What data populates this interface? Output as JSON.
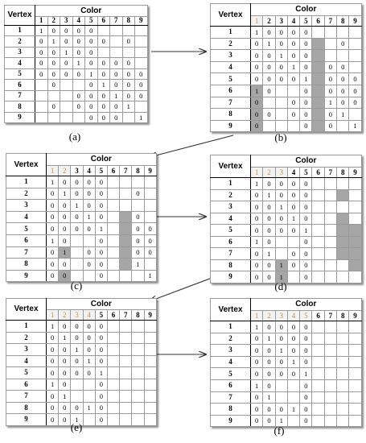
{
  "vertex_label": "Vertex",
  "color_label": "Color",
  "color_numbers": [
    "1",
    "2",
    "3",
    "4",
    "5",
    "6",
    "7",
    "8",
    "9"
  ],
  "vertex_numbers": [
    "1",
    "2",
    "3",
    "4",
    "5",
    "6",
    "7",
    "8",
    "9"
  ],
  "colors": {
    "used_header": "#c9913f",
    "shade": "#a6a6a6",
    "arrow": "#333333"
  },
  "panels": [
    {
      "id": "a",
      "caption": "(a)",
      "used": 0,
      "rows": [
        [
          "1",
          "0",
          "0",
          "0",
          "0",
          "",
          "",
          "",
          ""
        ],
        [
          "0",
          "1",
          "0",
          "0",
          "0",
          "0",
          "",
          "0",
          ""
        ],
        [
          "0",
          "0",
          "1",
          "0",
          "0",
          "",
          "",
          "",
          ""
        ],
        [
          "0",
          "0",
          "0",
          "1",
          "0",
          "0",
          "0",
          "0",
          ""
        ],
        [
          "0",
          "0",
          "0",
          "0",
          "1",
          "0",
          "0",
          "0",
          "0"
        ],
        [
          "",
          "0",
          "",
          "",
          "0",
          "1",
          "0",
          "0",
          "0"
        ],
        [
          "",
          "",
          "",
          "0",
          "0",
          "0",
          "1",
          "0",
          "0"
        ],
        [
          "",
          "0",
          "",
          "0",
          "0",
          "0",
          "0",
          "1",
          ""
        ],
        [
          "",
          "",
          "",
          "",
          "0",
          "0",
          "0",
          "",
          "1"
        ]
      ],
      "shaded": []
    },
    {
      "id": "b",
      "caption": "(b)",
      "used": 1,
      "rows": [
        [
          "1",
          "0",
          "0",
          "0",
          "0",
          "",
          "",
          "",
          ""
        ],
        [
          "0",
          "1",
          "0",
          "0",
          "0",
          "",
          "",
          "0",
          ""
        ],
        [
          "0",
          "0",
          "1",
          "0",
          "0",
          "",
          "",
          "",
          ""
        ],
        [
          "0",
          "0",
          "0",
          "1",
          "0",
          "",
          "0",
          "0",
          ""
        ],
        [
          "0",
          "0",
          "0",
          "0",
          "1",
          "",
          "0",
          "0",
          "0"
        ],
        [
          "1",
          "0",
          "",
          "",
          "0",
          "",
          "0",
          "0",
          "0"
        ],
        [
          "0",
          "",
          "",
          "0",
          "0",
          "",
          "1",
          "0",
          "0"
        ],
        [
          "0",
          "0",
          "",
          "0",
          "0",
          "",
          "0",
          "1",
          ""
        ],
        [
          "0",
          "",
          "",
          "",
          "0",
          "",
          "0",
          "",
          "1"
        ]
      ],
      "shaded": [
        [
          1,
          5
        ],
        [
          2,
          5
        ],
        [
          3,
          5
        ],
        [
          4,
          5
        ],
        [
          5,
          5
        ],
        [
          5,
          0
        ],
        [
          6,
          5
        ],
        [
          6,
          0
        ],
        [
          7,
          5
        ],
        [
          7,
          0
        ],
        [
          8,
          5
        ],
        [
          8,
          0
        ]
      ]
    },
    {
      "id": "c",
      "caption": "(c)",
      "used": 2,
      "rows": [
        [
          "1",
          "0",
          "0",
          "0",
          "0",
          "",
          "",
          "",
          ""
        ],
        [
          "0",
          "1",
          "0",
          "0",
          "0",
          "",
          "",
          "0",
          ""
        ],
        [
          "0",
          "0",
          "1",
          "0",
          "0",
          "",
          "",
          "",
          ""
        ],
        [
          "0",
          "0",
          "0",
          "1",
          "0",
          "",
          "",
          "0",
          ""
        ],
        [
          "0",
          "0",
          "0",
          "0",
          "1",
          "",
          "",
          "0",
          "0"
        ],
        [
          "1",
          "0",
          "",
          "",
          "0",
          "",
          "",
          "0",
          "0"
        ],
        [
          "0",
          "1",
          "",
          "0",
          "0",
          "",
          "",
          "0",
          "0"
        ],
        [
          "0",
          "0",
          "",
          "0",
          "0",
          "",
          "",
          "1",
          ""
        ],
        [
          "0",
          "0",
          "",
          "",
          "0",
          "",
          "",
          "",
          "1"
        ]
      ],
      "shaded": [
        [
          3,
          6
        ],
        [
          4,
          6
        ],
        [
          5,
          6
        ],
        [
          6,
          6
        ],
        [
          6,
          1
        ],
        [
          7,
          6
        ],
        [
          8,
          1
        ]
      ]
    },
    {
      "id": "d",
      "caption": "(d)",
      "used": 3,
      "rows": [
        [
          "1",
          "0",
          "0",
          "0",
          "0",
          "",
          "",
          "",
          ""
        ],
        [
          "0",
          "1",
          "0",
          "0",
          "0",
          "",
          "",
          "",
          ""
        ],
        [
          "0",
          "0",
          "1",
          "0",
          "0",
          "",
          "",
          "",
          ""
        ],
        [
          "0",
          "0",
          "0",
          "1",
          "0",
          "",
          "",
          "",
          ""
        ],
        [
          "0",
          "0",
          "0",
          "0",
          "1",
          "",
          "",
          "",
          ""
        ],
        [
          "1",
          "0",
          "",
          "",
          "0",
          "",
          "",
          "",
          ""
        ],
        [
          "0",
          "1",
          "",
          "0",
          "0",
          "",
          "",
          "",
          ""
        ],
        [
          "0",
          "0",
          "1",
          "0",
          "0",
          "",
          "",
          "",
          ""
        ],
        [
          "0",
          "0",
          "1",
          "",
          "0",
          "",
          "",
          "",
          ""
        ]
      ],
      "shaded": [
        [
          1,
          7
        ],
        [
          3,
          7
        ],
        [
          4,
          7
        ],
        [
          4,
          8
        ],
        [
          5,
          7
        ],
        [
          5,
          8
        ],
        [
          6,
          7
        ],
        [
          6,
          8
        ],
        [
          7,
          2
        ],
        [
          7,
          8
        ],
        [
          8,
          2
        ]
      ]
    },
    {
      "id": "e",
      "caption": "(e)",
      "used": 4,
      "rows": [
        [
          "1",
          "0",
          "0",
          "0",
          "0",
          "",
          "",
          "",
          ""
        ],
        [
          "0",
          "1",
          "0",
          "0",
          "0",
          "",
          "",
          "",
          ""
        ],
        [
          "0",
          "0",
          "1",
          "0",
          "0",
          "",
          "",
          "",
          ""
        ],
        [
          "0",
          "0",
          "0",
          "1",
          "0",
          "",
          "",
          "",
          ""
        ],
        [
          "0",
          "0",
          "0",
          "0",
          "1",
          "",
          "",
          "",
          ""
        ],
        [
          "1",
          "0",
          "",
          "",
          "0",
          "",
          "",
          "",
          ""
        ],
        [
          "0",
          "1",
          "",
          "",
          "0",
          "",
          "",
          "",
          ""
        ],
        [
          "0",
          "0",
          "0",
          "1",
          "0",
          "",
          "",
          "",
          ""
        ],
        [
          "0",
          "0",
          "1",
          "",
          "0",
          "",
          "",
          "",
          ""
        ]
      ],
      "shaded": []
    },
    {
      "id": "f",
      "caption": "(f)",
      "used": 5,
      "rows": [
        [
          "1",
          "0",
          "0",
          "0",
          "0",
          "",
          "",
          "",
          ""
        ],
        [
          "0",
          "1",
          "0",
          "0",
          "0",
          "",
          "",
          "",
          ""
        ],
        [
          "0",
          "0",
          "1",
          "0",
          "0",
          "",
          "",
          "",
          ""
        ],
        [
          "0",
          "0",
          "0",
          "1",
          "0",
          "",
          "",
          "",
          ""
        ],
        [
          "0",
          "0",
          "0",
          "0",
          "1",
          "",
          "",
          "",
          ""
        ],
        [
          "1",
          "0",
          "",
          "",
          "0",
          "",
          "",
          "",
          ""
        ],
        [
          "0",
          "1",
          "",
          "",
          "0",
          "",
          "",
          "",
          ""
        ],
        [
          "0",
          "0",
          "0",
          "1",
          "0",
          "",
          "",
          "",
          ""
        ],
        [
          "0",
          "0",
          "1",
          "",
          "0",
          "",
          "",
          "",
          ""
        ]
      ],
      "shaded": []
    }
  ]
}
